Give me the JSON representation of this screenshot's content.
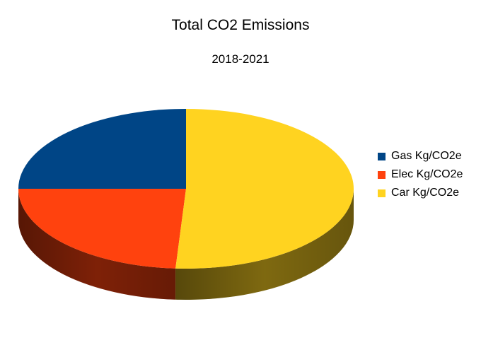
{
  "chart_data": {
    "type": "pie",
    "title": "Total CO2 Emissions",
    "subtitle": "2018-2021",
    "categories": [
      "Gas Kg/CO2e",
      "Elec Kg/CO2e",
      "Car Kg/CO2e"
    ],
    "values": [
      25,
      24,
      51
    ],
    "colors": [
      "#004586",
      "#ff420e",
      "#ffd320"
    ],
    "legend_position": "right"
  }
}
